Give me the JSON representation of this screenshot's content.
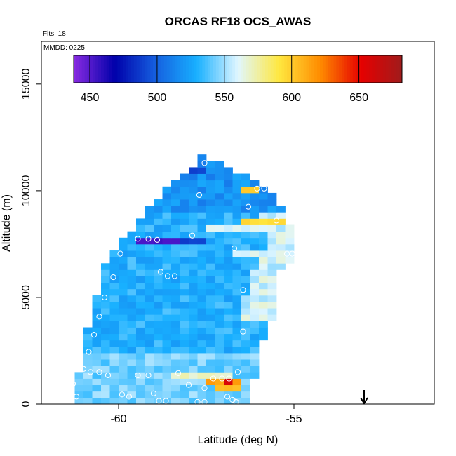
{
  "chart_data": {
    "type": "heatmap",
    "title": "ORCAS RF18 OCS_AWAS",
    "flights_label": "Flts: 18",
    "date_label": "MMDD: 0225",
    "xlabel": "Latitude (deg N)",
    "ylabel": "Altitude (m)",
    "xlim": [
      -62.2,
      -51.0
    ],
    "ylim": [
      0,
      17000
    ],
    "xticks": [
      -60,
      -55
    ],
    "xtick_labels": [
      "-60",
      "-55"
    ],
    "yticks": [
      0,
      5000,
      10000,
      15000
    ],
    "ytick_labels": [
      "0",
      "5000",
      "10000",
      "15000"
    ],
    "colorbar": {
      "range": [
        438,
        682
      ],
      "ticks": [
        450,
        500,
        550,
        600,
        650
      ],
      "tick_labels": [
        "450",
        "500",
        "550",
        "600",
        "650"
      ],
      "placement": "top-inside",
      "colors": [
        "#8a2be2",
        "#0000aa",
        "#1560e0",
        "#18b0ff",
        "#e0f6ff",
        "#ffe840",
        "#ff8c00",
        "#e60000",
        "#a01c1c"
      ]
    },
    "grid": false,
    "lat_bin_deg": 0.25,
    "alt_bin_m": 300,
    "profile": {
      "lower_edge": [
        [
          0,
          -61.25
        ],
        [
          1200,
          -61.25
        ],
        [
          1500,
          -61.0
        ],
        [
          2500,
          -60.9
        ],
        [
          3500,
          -60.75
        ],
        [
          5000,
          -60.5
        ],
        [
          6000,
          -60.3
        ],
        [
          7000,
          -60.2
        ],
        [
          8000,
          -59.6
        ],
        [
          9000,
          -59.1
        ],
        [
          10000,
          -58.6
        ],
        [
          11000,
          -57.8
        ],
        [
          11500,
          -57.6
        ]
      ],
      "upper_edge": [
        [
          0,
          -56.3
        ],
        [
          1000,
          -56.3
        ],
        [
          1500,
          -56.2
        ],
        [
          3000,
          -56.0
        ],
        [
          4000,
          -55.7
        ],
        [
          6000,
          -55.6
        ],
        [
          7000,
          -55.1
        ],
        [
          7800,
          -55.1
        ],
        [
          8500,
          -55.3
        ],
        [
          9500,
          -55.6
        ],
        [
          10200,
          -56.0
        ],
        [
          10800,
          -56.6
        ],
        [
          11500,
          -57.6
        ]
      ],
      "background_value": 530
    },
    "anomalies": [
      {
        "alt": 7700,
        "lat_from": -59.4,
        "lat_to": -58.3,
        "value": 455
      },
      {
        "alt": 7700,
        "lat_from": -58.3,
        "lat_to": -57.6,
        "value": 490
      },
      {
        "alt": 8300,
        "lat_from": -57.4,
        "lat_to": -55.4,
        "value": 560
      },
      {
        "alt": 8600,
        "lat_from": -56.4,
        "lat_to": -55.3,
        "value": 595
      },
      {
        "alt": 10100,
        "lat_from": -56.4,
        "lat_to": -55.9,
        "value": 600
      },
      {
        "alt": 7000,
        "lat_from": -56.7,
        "lat_to": -55.0,
        "value": 560
      },
      {
        "alt": 1400,
        "lat_from": -58.6,
        "lat_to": -56.8,
        "value": 570
      },
      {
        "alt": 1100,
        "lat_from": -57.4,
        "lat_to": -56.6,
        "value": 615
      },
      {
        "alt": 800,
        "lat_from": -57.2,
        "lat_to": -56.5,
        "value": 605
      },
      {
        "alt": 1100,
        "lat_from": -56.9,
        "lat_to": -56.8,
        "value": 660
      },
      {
        "alt": 11000,
        "lat_from": -57.9,
        "lat_to": -57.5,
        "value": 490
      }
    ],
    "samples": [
      {
        "lat": -57.55,
        "alt": 11300
      },
      {
        "lat": -57.7,
        "alt": 9800
      },
      {
        "lat": -56.05,
        "alt": 10100
      },
      {
        "lat": -55.85,
        "alt": 10100
      },
      {
        "lat": -55.65,
        "alt": 10100
      },
      {
        "lat": -55.55,
        "alt": 10100
      },
      {
        "lat": -55.5,
        "alt": 8600
      },
      {
        "lat": -56.3,
        "alt": 9250
      },
      {
        "lat": -57.9,
        "alt": 7900
      },
      {
        "lat": -59.45,
        "alt": 7750
      },
      {
        "lat": -59.15,
        "alt": 7750
      },
      {
        "lat": -58.9,
        "alt": 7700
      },
      {
        "lat": -56.7,
        "alt": 7300
      },
      {
        "lat": -55.2,
        "alt": 7050
      },
      {
        "lat": -55.05,
        "alt": 7050
      },
      {
        "lat": -59.95,
        "alt": 7050
      },
      {
        "lat": -58.8,
        "alt": 6200
      },
      {
        "lat": -58.6,
        "alt": 6000
      },
      {
        "lat": -58.4,
        "alt": 6000
      },
      {
        "lat": -60.15,
        "alt": 5950
      },
      {
        "lat": -56.45,
        "alt": 5350
      },
      {
        "lat": -60.4,
        "alt": 5000
      },
      {
        "lat": -60.55,
        "alt": 4100
      },
      {
        "lat": -56.45,
        "alt": 3400
      },
      {
        "lat": -60.7,
        "alt": 3250
      },
      {
        "lat": -60.85,
        "alt": 2450
      },
      {
        "lat": -61.0,
        "alt": 1650
      },
      {
        "lat": -60.8,
        "alt": 1500
      },
      {
        "lat": -60.55,
        "alt": 1500
      },
      {
        "lat": -60.3,
        "alt": 1350
      },
      {
        "lat": -59.45,
        "alt": 1350
      },
      {
        "lat": -59.15,
        "alt": 1350
      },
      {
        "lat": -58.3,
        "alt": 1450
      },
      {
        "lat": -56.6,
        "alt": 1500
      },
      {
        "lat": -57.3,
        "alt": 1200
      },
      {
        "lat": -57.05,
        "alt": 1200
      },
      {
        "lat": -56.85,
        "alt": 1200
      },
      {
        "lat": -58.0,
        "alt": 900
      },
      {
        "lat": -57.55,
        "alt": 750
      },
      {
        "lat": -61.3,
        "alt": 950
      },
      {
        "lat": -59.0,
        "alt": 500
      },
      {
        "lat": -59.9,
        "alt": 450
      },
      {
        "lat": -59.7,
        "alt": 350
      },
      {
        "lat": -61.65,
        "alt": 350
      },
      {
        "lat": -61.45,
        "alt": 350
      },
      {
        "lat": -61.2,
        "alt": 350
      },
      {
        "lat": -58.85,
        "alt": 150
      },
      {
        "lat": -58.65,
        "alt": 150
      },
      {
        "lat": -57.75,
        "alt": 100
      },
      {
        "lat": -57.55,
        "alt": 100
      },
      {
        "lat": -56.9,
        "alt": 350
      },
      {
        "lat": -56.75,
        "alt": 200
      },
      {
        "lat": -56.65,
        "alt": 100
      }
    ],
    "arrow": {
      "lat": -53.0,
      "direction": "down"
    }
  }
}
